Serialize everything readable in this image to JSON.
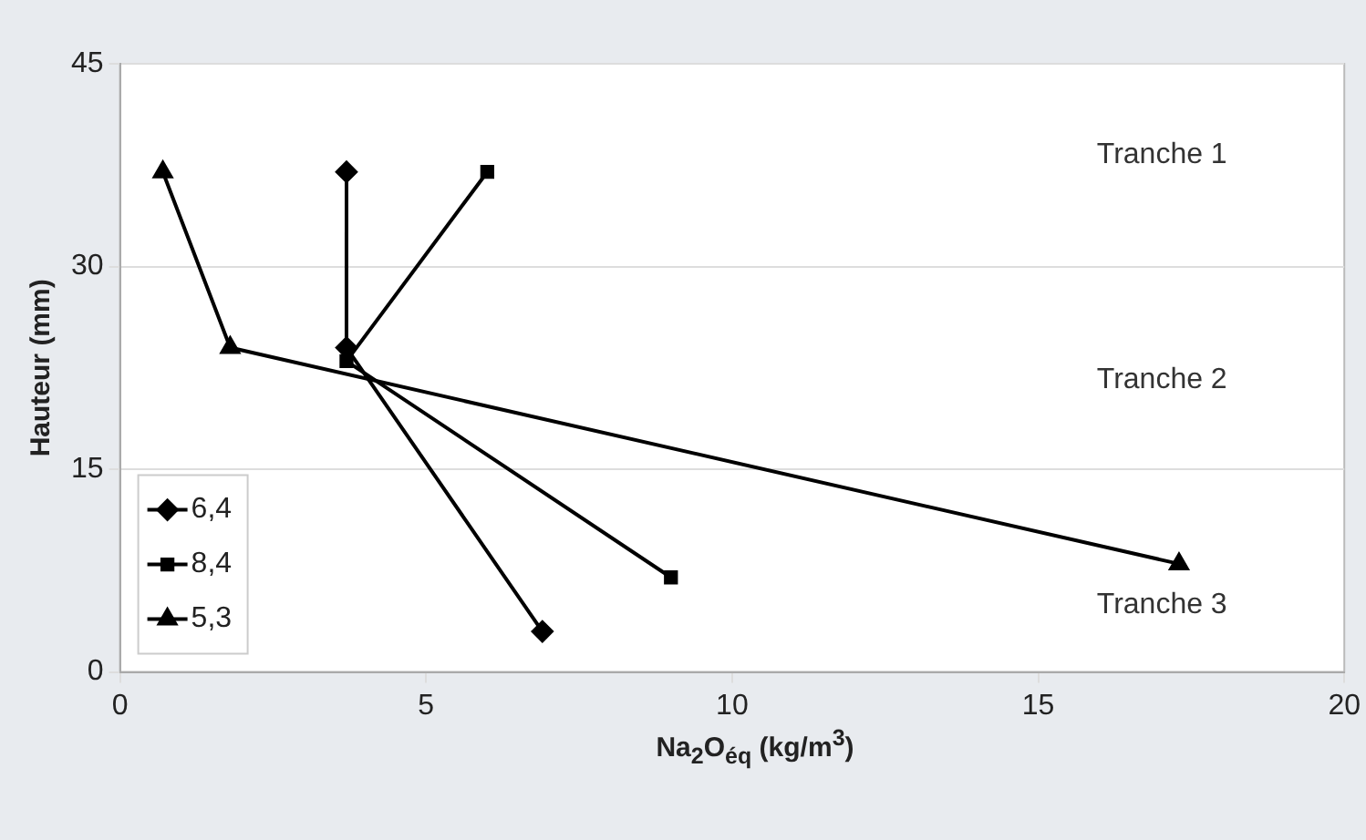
{
  "chart_data": {
    "type": "line",
    "xlabel": "Na$_{2}$O$_{éq}$ (kg/m$^{3}$)",
    "ylabel": "Hauteur (mm)",
    "xlim": [
      0,
      20
    ],
    "xticks": [
      0,
      5,
      10,
      15,
      20
    ],
    "ylim": [
      0,
      45
    ],
    "yticks": [
      0,
      15,
      30,
      45
    ],
    "grid": "y",
    "legend": "bottom left",
    "line_style": "solid",
    "series": [
      {
        "name": "6,4",
        "color": "#000000",
        "marker": "diamond",
        "x": [
          3.7,
          3.7,
          6.9
        ],
        "values": [
          37,
          24,
          3
        ]
      },
      {
        "name": "8,4",
        "color": "#000000",
        "marker": "square",
        "x": [
          6.0,
          3.7,
          9.0
        ],
        "values": [
          37,
          23,
          7
        ]
      },
      {
        "name": "5,3",
        "color": "#000000",
        "marker": "triangle",
        "x": [
          0.7,
          1.8,
          17.3
        ],
        "values": [
          37,
          24,
          8
        ]
      }
    ],
    "annotations": [
      "Tranche 1",
      "Tranche 2",
      "Tranche 3"
    ]
  }
}
